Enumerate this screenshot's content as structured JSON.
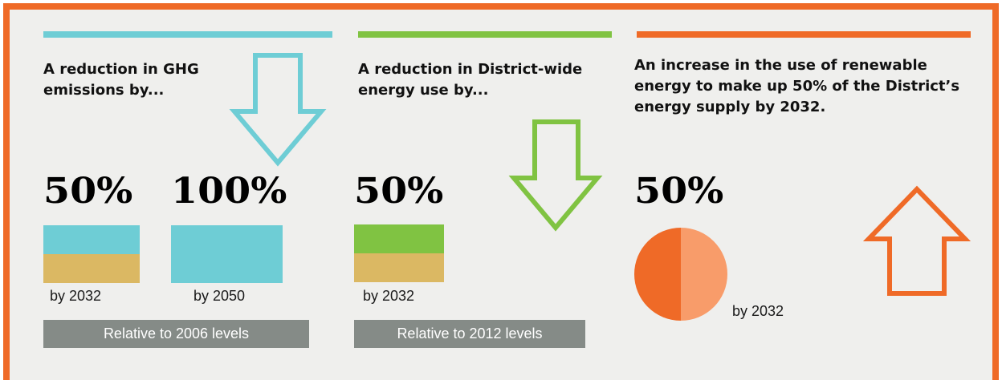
{
  "colors": {
    "frame": "#ef6a27",
    "teal": "#6ecdd5",
    "green": "#80c342",
    "orange": "#ef6a27",
    "light_orange": "#f89c6a",
    "tan": "#dbb863",
    "band": "#858b87",
    "background": "#efefed"
  },
  "ghg": {
    "heading": "A reduction in GHG emissions by...",
    "value_2032": "50%",
    "value_2050": "100%",
    "label_2032": "by 2032",
    "label_2050": "by 2050",
    "reduction_fraction_2032": 0.5,
    "reduction_fraction_2050": 1.0,
    "baseline": "Relative to 2006 levels",
    "arrow": "arrow-down-icon"
  },
  "energy": {
    "heading": "A reduction in District-wide energy use by...",
    "value_2032": "50%",
    "label_2032": "by 2032",
    "reduction_fraction_2032": 0.5,
    "baseline": "Relative to 2012 levels",
    "arrow": "arrow-down-icon"
  },
  "renewable": {
    "heading": "An increase in the use of renewable energy to make up 50% of the District’s energy supply by 2032.",
    "value_2032": "50%",
    "label_2032": "by 2032",
    "share": 0.5,
    "arrow": "arrow-up-icon"
  }
}
